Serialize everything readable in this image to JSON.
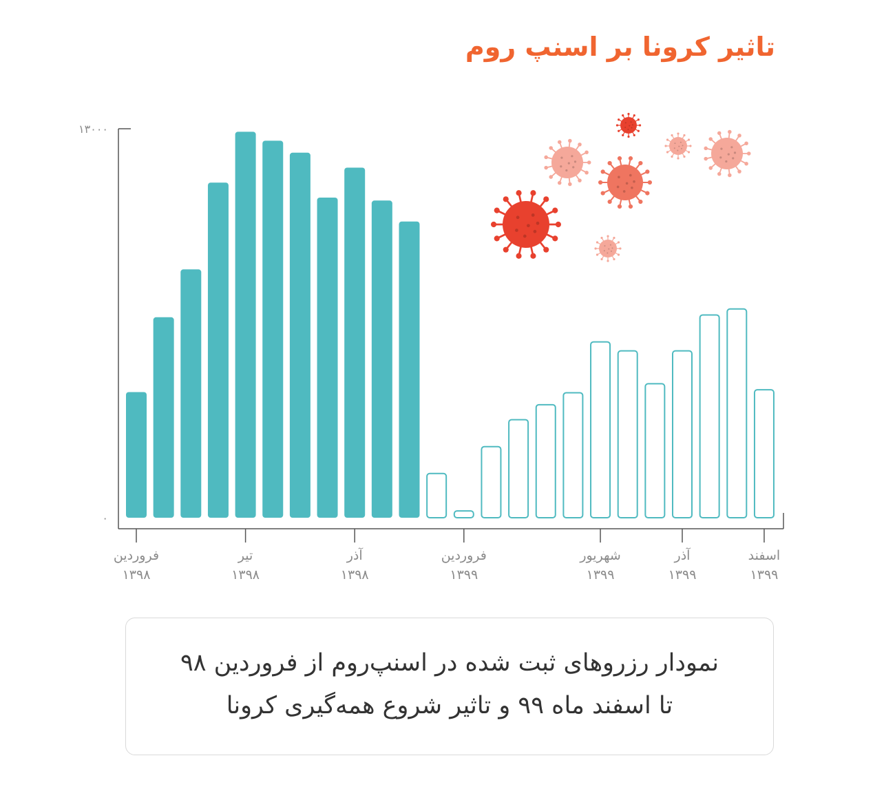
{
  "title": "تاثیر کرونا بر اسنپ روم",
  "caption": {
    "line1": "نمودار رزروهای ثبت شده در اسنپ‌روم از فروردین ۹۸",
    "line2": "تا اسفند ماه ۹۹ و تاثیر شروع همه‌گیری کرونا"
  },
  "colors": {
    "accent": "#f06530",
    "bar": "#4fbac0",
    "axis": "#555555",
    "virus_dark": "#e8412e",
    "virus_mid": "#ef7560",
    "virus_light": "#f5a89a"
  },
  "chart_data": {
    "type": "bar",
    "ylim": [
      0,
      13000
    ],
    "y_ticks": [
      {
        "value": 0,
        "label": "۰"
      },
      {
        "value": 13000,
        "label": "۱۳۰۰۰"
      }
    ],
    "series": [
      {
        "style": "filled",
        "values": [
          4200,
          6700,
          8300,
          11200,
          12900,
          12600,
          12200,
          10700,
          11700,
          10600,
          9900
        ]
      },
      {
        "style": "outline",
        "values": [
          1500,
          250,
          2400,
          3300,
          3800,
          4200,
          5900,
          5600,
          4500,
          5600,
          6800,
          7000,
          4300
        ]
      }
    ],
    "x_tick_labels": [
      {
        "bar_index": 0,
        "label1": "فروردین",
        "label2": "۱۳۹۸"
      },
      {
        "bar_index": 4,
        "label1": "تیر",
        "label2": "۱۳۹۸"
      },
      {
        "bar_index": 8,
        "label1": "آذر",
        "label2": "۱۳۹۸"
      },
      {
        "bar_index": 12,
        "label1": "فروردین",
        "label2": "۱۳۹۹"
      },
      {
        "bar_index": 17,
        "label1": "شهریور",
        "label2": "۱۳۹۹"
      },
      {
        "bar_index": 20,
        "label1": "آذر",
        "label2": "۱۳۹۹"
      },
      {
        "bar_index": 23,
        "label1": "اسفند",
        "label2": "۱۳۹۹"
      }
    ]
  }
}
